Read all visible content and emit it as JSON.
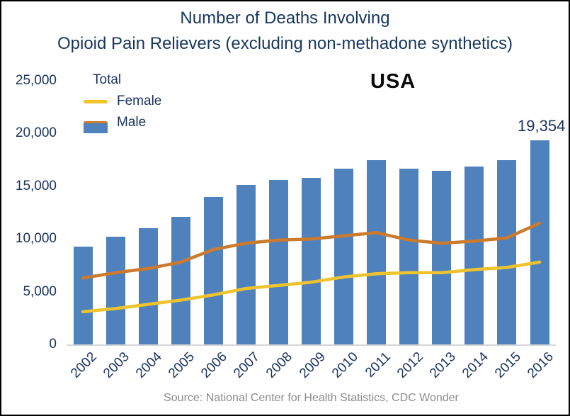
{
  "title": {
    "line1": "Number of Deaths Involving",
    "line2": "Opioid Pain Relievers (excluding non-methadone synthetics)"
  },
  "region_label": "USA",
  "legend": {
    "items": [
      {
        "label": "Total",
        "swatch": "bar",
        "color_key": "bar_total"
      },
      {
        "label": "Female",
        "swatch": "line",
        "color_key": "line_female"
      },
      {
        "label": "Male",
        "swatch": "line",
        "color_key": "line_male"
      }
    ]
  },
  "annotation": {
    "series": "Total",
    "category": "2016",
    "text": "19,354"
  },
  "source_note": "Source: National Center for Health Statistics, CDC Wonder",
  "colors": {
    "bar_total": "#4F81BD",
    "line_female": "#EEC32D",
    "line_male": "#CC7B2D",
    "axis_text": "#1B3360",
    "title_text": "#17365D",
    "usa_text": "#0a0a0a",
    "source_text": "#8C8C8C",
    "baseline": "#D6D6D6"
  },
  "chart_data": {
    "type": "bar+line",
    "title": "Number of Deaths Involving Opioid Pain Relievers (excluding non-methadone synthetics)",
    "region": "USA",
    "categories": [
      "2002",
      "2003",
      "2004",
      "2005",
      "2006",
      "2007",
      "2008",
      "2009",
      "2010",
      "2011",
      "2012",
      "2013",
      "2014",
      "2015",
      "2016"
    ],
    "series": [
      {
        "name": "Total",
        "type": "bar",
        "color_key": "bar_total",
        "values": [
          9300,
          10200,
          11000,
          12100,
          14000,
          15100,
          15600,
          15800,
          16700,
          17500,
          16700,
          16500,
          16900,
          17500,
          19354
        ]
      },
      {
        "name": "Female",
        "type": "line",
        "color_key": "line_female",
        "values": [
          3100,
          3400,
          3800,
          4200,
          4700,
          5300,
          5600,
          5900,
          6400,
          6700,
          6800,
          6800,
          7100,
          7300,
          7800
        ]
      },
      {
        "name": "Male",
        "type": "line",
        "color_key": "line_male",
        "values": [
          6300,
          6800,
          7200,
          7800,
          9000,
          9600,
          9900,
          10000,
          10300,
          10600,
          9900,
          9600,
          9800,
          10100,
          11500
        ]
      }
    ],
    "ylim": [
      0,
      25000
    ],
    "yticks": [
      {
        "value": 0,
        "label": "0"
      },
      {
        "value": 5000,
        "label": "5,000"
      },
      {
        "value": 10000,
        "label": "10,000"
      },
      {
        "value": 15000,
        "label": "15,000"
      },
      {
        "value": 20000,
        "label": "20,000"
      },
      {
        "value": 25000,
        "label": "25,000"
      }
    ],
    "data_labels": [
      {
        "series": "Total",
        "category": "2016",
        "label": "19,354"
      }
    ],
    "grid": false,
    "legend_position": "top-left",
    "xlabel": "",
    "ylabel": ""
  }
}
